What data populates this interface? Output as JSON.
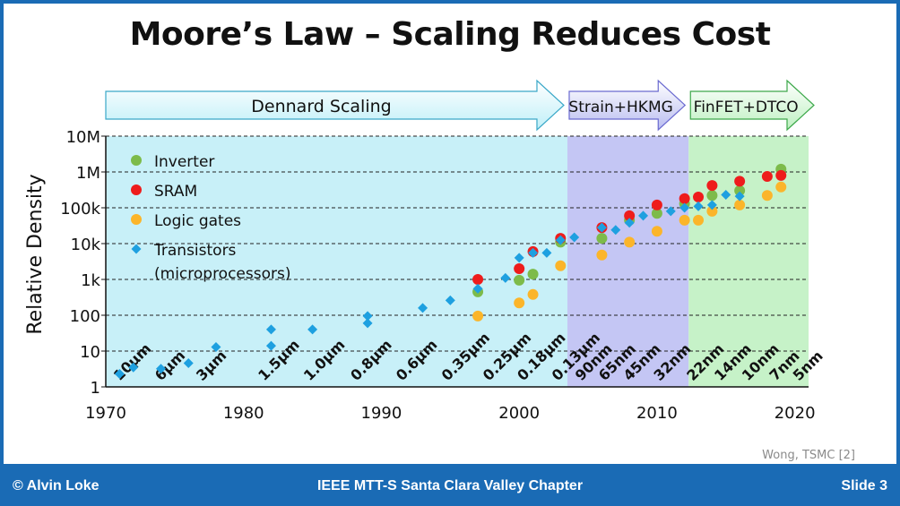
{
  "slide": {
    "title": "Moore’s Law – Scaling Reduces Cost",
    "citation": "Wong, TSMC [2]",
    "footer": {
      "left": "© Alvin Loke",
      "center": "IEEE MTT-S Santa Clara Valley Chapter",
      "right": "Slide 3"
    }
  },
  "colors": {
    "dennard_bg": "#c8f0f8",
    "strain_bg": "#c4c6f4",
    "finfet_bg": "#c6f2c8",
    "inverter": "#7dbb4a",
    "sram": "#ee1c1c",
    "logic": "#fbb52a",
    "transistor": "#1ea0e0",
    "footer_bg": "#1a6bb5"
  },
  "chart_data": {
    "type": "scatter",
    "title": "",
    "xlabel": "",
    "ylabel": "Relative Density",
    "y_scale": "log",
    "xlim": [
      1970,
      2021
    ],
    "ylim": [
      1,
      10000000
    ],
    "x_ticks": [
      1970,
      1980,
      1990,
      2000,
      2010,
      2020
    ],
    "x_tick_labels": [
      "1970",
      "1980",
      "1990",
      "2000",
      "2010",
      "2020"
    ],
    "y_ticks": [
      1,
      10,
      100,
      1000,
      10000,
      100000,
      1000000,
      10000000
    ],
    "y_tick_labels": [
      "1",
      "10",
      "100",
      "1k",
      "10k",
      "100k",
      "1M",
      "10M"
    ],
    "grid": "horizontal dashed",
    "legend_position": "top-left",
    "eras": [
      {
        "label": "Dennard Scaling",
        "x_start": 1970,
        "x_end": 2003.5
      },
      {
        "label": "Strain+HKMG",
        "x_start": 2003.5,
        "x_end": 2012.3
      },
      {
        "label": "FinFET+DTCO",
        "x_start": 2012.3,
        "x_end": 2021
      }
    ],
    "nodes": [
      {
        "label": "10μm",
        "x": 1971
      },
      {
        "label": "6μm",
        "x": 1974
      },
      {
        "label": "3μm",
        "x": 1977
      },
      {
        "label": "1.5μm",
        "x": 1981.5
      },
      {
        "label": "1.0μm",
        "x": 1984.8
      },
      {
        "label": "0.8μm",
        "x": 1988.2
      },
      {
        "label": "0.6μm",
        "x": 1991.5
      },
      {
        "label": "0.35μm",
        "x": 1994.8
      },
      {
        "label": "0.25μm",
        "x": 1997.8
      },
      {
        "label": "0.18μm",
        "x": 2000.3
      },
      {
        "label": "0.13μm",
        "x": 2002.8
      },
      {
        "label": "90nm",
        "x": 2004.5
      },
      {
        "label": "65nm",
        "x": 2006.2
      },
      {
        "label": "45nm",
        "x": 2008
      },
      {
        "label": "32nm",
        "x": 2010.2
      },
      {
        "label": "22nm",
        "x": 2012.6
      },
      {
        "label": "14nm",
        "x": 2014.6
      },
      {
        "label": "10nm",
        "x": 2016.6
      },
      {
        "label": "7nm",
        "x": 2018.6
      },
      {
        "label": "5nm",
        "x": 2020.3
      }
    ],
    "series": [
      {
        "name": "Inverter",
        "marker": "circle",
        "color": "#7dbb4a",
        "points": [
          [
            1997,
            450
          ],
          [
            2000,
            950
          ],
          [
            2001,
            1400
          ],
          [
            2003,
            11000
          ],
          [
            2006,
            14000
          ],
          [
            2008,
            45000
          ],
          [
            2010,
            70000
          ],
          [
            2012,
            130000
          ],
          [
            2014,
            220000
          ],
          [
            2016,
            300000
          ],
          [
            2019,
            1200000
          ]
        ]
      },
      {
        "name": "SRAM",
        "marker": "circle",
        "color": "#ee1c1c",
        "points": [
          [
            1997,
            1000
          ],
          [
            2000,
            2000
          ],
          [
            2001,
            6000
          ],
          [
            2003,
            14000
          ],
          [
            2006,
            28000
          ],
          [
            2008,
            60000
          ],
          [
            2010,
            120000
          ],
          [
            2012,
            180000
          ],
          [
            2013,
            200000
          ],
          [
            2014,
            420000
          ],
          [
            2016,
            550000
          ],
          [
            2018,
            750000
          ],
          [
            2019,
            800000
          ]
        ]
      },
      {
        "name": "Logic gates",
        "marker": "circle",
        "color": "#fbb52a",
        "points": [
          [
            1997,
            95
          ],
          [
            2000,
            220
          ],
          [
            2001,
            380
          ],
          [
            2003,
            2400
          ],
          [
            2006,
            4800
          ],
          [
            2008,
            11000
          ],
          [
            2010,
            22000
          ],
          [
            2012,
            45000
          ],
          [
            2013,
            45000
          ],
          [
            2014,
            80000
          ],
          [
            2016,
            120000
          ],
          [
            2018,
            220000
          ],
          [
            2019,
            380000
          ]
        ]
      },
      {
        "name": "Transistors\n(microprocessors)",
        "legend_lines": [
          "Transistors",
          "(microprocessors)"
        ],
        "marker": "diamond",
        "color": "#1ea0e0",
        "points": [
          [
            1971,
            2.3
          ],
          [
            1972,
            3.5
          ],
          [
            1974,
            3.2
          ],
          [
            1976,
            4.6
          ],
          [
            1978,
            13
          ],
          [
            1982,
            14
          ],
          [
            1982,
            40
          ],
          [
            1985,
            40
          ],
          [
            1989,
            60
          ],
          [
            1989,
            95
          ],
          [
            1993,
            160
          ],
          [
            1995,
            260
          ],
          [
            1997,
            550
          ],
          [
            1999,
            1100
          ],
          [
            2000,
            4000
          ],
          [
            2001,
            5500
          ],
          [
            2002,
            5500
          ],
          [
            2003,
            12500
          ],
          [
            2004,
            15000
          ],
          [
            2006,
            28000
          ],
          [
            2007,
            24000
          ],
          [
            2008,
            38000
          ],
          [
            2009,
            60000
          ],
          [
            2011,
            80000
          ],
          [
            2012,
            100000
          ],
          [
            2013,
            110000
          ],
          [
            2014,
            120000
          ],
          [
            2015,
            230000
          ],
          [
            2016,
            210000
          ]
        ]
      }
    ]
  }
}
